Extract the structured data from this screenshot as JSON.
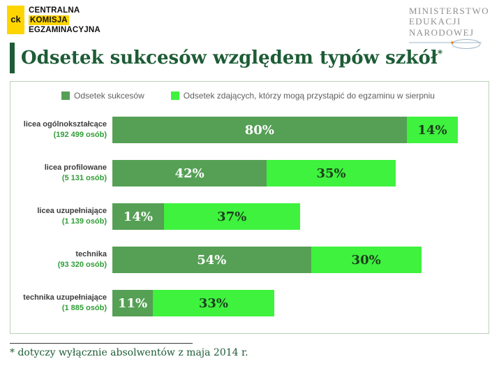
{
  "header": {
    "cke": {
      "mark": "ck",
      "line1": "CENTRALNA",
      "line2": "KOMISJA",
      "line3": "EGZAMINACYJNA"
    },
    "ministry": {
      "line1": "MINISTERSTWO",
      "line2": "EDUKACJI",
      "line3": "NARODOWEJ"
    }
  },
  "title": "Odsetek sukcesów względem typów szkół",
  "title_asterisk": "*",
  "footnote": "* dotyczy wyłącznie absolwentów z maja 2014 r.",
  "colors": {
    "title_green": "#1d5c36",
    "accent_bar": "#1d5c36",
    "dark_green": "#55a055",
    "light_green": "#3ef23e",
    "count_green": "#2f9e36",
    "cke_yellow": "#ffd500"
  },
  "chart_data": {
    "type": "bar",
    "orientation": "horizontal",
    "stacked": true,
    "grid": false,
    "legend_position": "top",
    "title": "Odsetek sukcesów względem typów szkół*",
    "xlim": [
      0,
      100
    ],
    "categories": [
      "licea ogólnokształcące",
      "licea profilowane",
      "licea uzupełniające",
      "technika",
      "technika uzupełniające"
    ],
    "category_counts": [
      "(192 499 osób)",
      "(5 131 osób)",
      "(1 139 osób)",
      "(93 320 osób)",
      "(1 885 osób)"
    ],
    "series": [
      {
        "name": "Odsetek sukcesów",
        "color": "#55a055",
        "value_label_color": "#ffffff",
        "values": [
          80,
          42,
          14,
          54,
          11
        ]
      },
      {
        "name": "Odsetek zdających, którzy mogą przystąpić do egzaminu w sierpniu",
        "color": "#3ef23e",
        "value_label_color": "#1d3d1d",
        "values": [
          14,
          35,
          37,
          30,
          33
        ]
      }
    ]
  }
}
